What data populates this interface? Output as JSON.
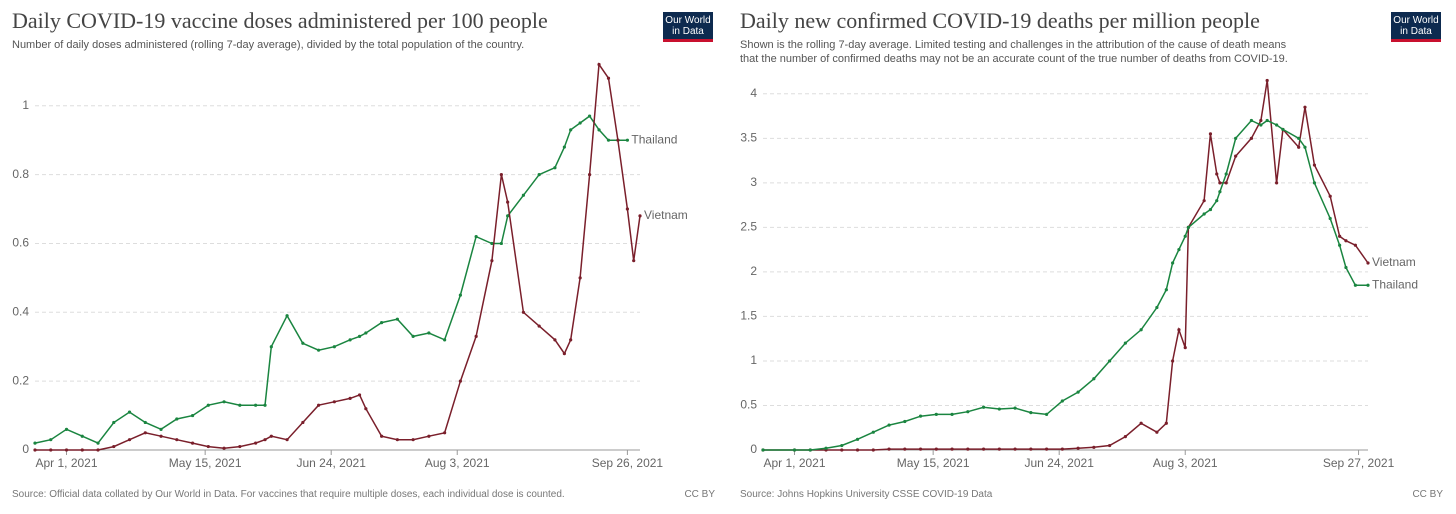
{
  "chart_data": [
    {
      "type": "line",
      "title": "Daily COVID-19 vaccine doses administered per 100 people",
      "subtitle": [
        "Number of daily doses administered (rolling 7-day average), divided by the total population of the country."
      ],
      "logo": "Our World in Data",
      "source": "Source: Official data collated by Our World in Data. For vaccines that require multiple doses, each individual dose is counted.",
      "license": "CC BY",
      "x": [
        "2021-03-22",
        "2021-03-27",
        "2021-04-01",
        "2021-04-06",
        "2021-04-11",
        "2021-04-16",
        "2021-04-21",
        "2021-04-26",
        "2021-05-01",
        "2021-05-06",
        "2021-05-11",
        "2021-05-16",
        "2021-05-21",
        "2021-05-26",
        "2021-05-31",
        "2021-06-03",
        "2021-06-05",
        "2021-06-10",
        "2021-06-15",
        "2021-06-20",
        "2021-06-25",
        "2021-06-30",
        "2021-07-03",
        "2021-07-05",
        "2021-07-10",
        "2021-07-15",
        "2021-07-20",
        "2021-07-25",
        "2021-07-30",
        "2021-08-04",
        "2021-08-09",
        "2021-08-14",
        "2021-08-17",
        "2021-08-19",
        "2021-08-24",
        "2021-08-29",
        "2021-09-03",
        "2021-09-06",
        "2021-09-08",
        "2021-09-11",
        "2021-09-14",
        "2021-09-17",
        "2021-09-20",
        "2021-09-23",
        "2021-09-26",
        "2021-09-28",
        "2021-09-30"
      ],
      "series": [
        {
          "name": "Thailand",
          "color": "#1a8540",
          "values": [
            0.02,
            0.03,
            0.06,
            0.04,
            0.02,
            0.08,
            0.11,
            0.08,
            0.06,
            0.09,
            0.1,
            0.13,
            0.14,
            0.13,
            0.13,
            0.13,
            0.3,
            0.39,
            0.31,
            0.29,
            0.3,
            0.32,
            0.33,
            0.34,
            0.37,
            0.38,
            0.33,
            0.34,
            0.32,
            0.45,
            0.62,
            0.6,
            0.6,
            0.68,
            0.74,
            0.8,
            0.82,
            0.88,
            0.93,
            0.95,
            0.97,
            0.93,
            0.9,
            0.9,
            0.9,
            null,
            null
          ]
        },
        {
          "name": "Vietnam",
          "color": "#7a1f2b",
          "values": [
            0,
            0,
            0,
            0,
            0,
            0.01,
            0.03,
            0.05,
            0.04,
            0.03,
            0.02,
            0.01,
            0.005,
            0.01,
            0.02,
            0.03,
            0.04,
            0.03,
            0.08,
            0.13,
            0.14,
            0.15,
            0.16,
            0.12,
            0.04,
            0.03,
            0.03,
            0.04,
            0.05,
            0.2,
            0.33,
            0.55,
            0.8,
            0.72,
            0.4,
            0.36,
            0.32,
            0.28,
            0.32,
            0.5,
            0.8,
            1.12,
            1.08,
            0.9,
            0.7,
            0.55,
            0.68
          ]
        }
      ],
      "xlim": [
        "2021-03-22",
        "2021-09-30"
      ],
      "xticks": [
        {
          "value": "2021-04-01",
          "label": "Apr 1, 2021"
        },
        {
          "value": "2021-05-15",
          "label": "May 15, 2021"
        },
        {
          "value": "2021-06-24",
          "label": "Jun 24, 2021"
        },
        {
          "value": "2021-08-03",
          "label": "Aug 3, 2021"
        },
        {
          "value": "2021-09-26",
          "label": "Sep 26, 2021"
        }
      ],
      "ylim": [
        0,
        1.13
      ],
      "yticks": [
        0,
        0.2,
        0.4,
        0.6,
        0.8,
        1
      ],
      "grid": true
    },
    {
      "type": "line",
      "title": "Daily new confirmed COVID-19 deaths per million people",
      "subtitle": [
        "Shown is the rolling 7-day average. Limited testing and challenges in the attribution of the cause of death means",
        "that the number of confirmed deaths may not be an accurate count of the true number of deaths from COVID-19."
      ],
      "logo": "Our World in Data",
      "source": "Source: Johns Hopkins University CSSE COVID-19 Data",
      "license": "CC BY",
      "x": [
        "2021-03-22",
        "2021-04-01",
        "2021-04-06",
        "2021-04-11",
        "2021-04-16",
        "2021-04-21",
        "2021-04-26",
        "2021-05-01",
        "2021-05-06",
        "2021-05-11",
        "2021-05-16",
        "2021-05-21",
        "2021-05-26",
        "2021-05-31",
        "2021-06-05",
        "2021-06-10",
        "2021-06-15",
        "2021-06-20",
        "2021-06-25",
        "2021-06-30",
        "2021-07-05",
        "2021-07-10",
        "2021-07-15",
        "2021-07-20",
        "2021-07-25",
        "2021-07-28",
        "2021-07-30",
        "2021-08-01",
        "2021-08-03",
        "2021-08-04",
        "2021-08-09",
        "2021-08-11",
        "2021-08-13",
        "2021-08-14",
        "2021-08-16",
        "2021-08-19",
        "2021-08-24",
        "2021-08-27",
        "2021-08-29",
        "2021-09-01",
        "2021-09-03",
        "2021-09-08",
        "2021-09-10",
        "2021-09-13",
        "2021-09-18",
        "2021-09-21",
        "2021-09-23",
        "2021-09-26",
        "2021-09-30"
      ],
      "series": [
        {
          "name": "Vietnam",
          "color": "#7a1f2b",
          "values": [
            0,
            0,
            0,
            0,
            0,
            0,
            0,
            0.01,
            0.01,
            0.01,
            0.01,
            0.01,
            0.01,
            0.01,
            0.01,
            0.01,
            0.01,
            0.01,
            0.01,
            0.02,
            0.03,
            0.05,
            0.15,
            0.3,
            0.2,
            0.3,
            1.0,
            1.35,
            1.15,
            2.5,
            2.8,
            3.55,
            3.1,
            3.0,
            3.0,
            3.3,
            3.5,
            3.7,
            4.15,
            3.0,
            3.6,
            3.4,
            3.85,
            3.2,
            2.85,
            2.4,
            2.35,
            2.3,
            2.1
          ]
        },
        {
          "name": "Thailand",
          "color": "#1a8540",
          "values": [
            0,
            0,
            0,
            0.02,
            0.05,
            0.12,
            0.2,
            0.28,
            0.32,
            0.38,
            0.4,
            0.4,
            0.43,
            0.48,
            0.46,
            0.47,
            0.42,
            0.4,
            0.55,
            0.65,
            0.8,
            1.0,
            1.2,
            1.35,
            1.6,
            1.8,
            2.1,
            2.25,
            2.4,
            2.5,
            2.65,
            2.7,
            2.8,
            2.9,
            3.1,
            3.5,
            3.7,
            3.65,
            3.7,
            3.65,
            3.6,
            3.5,
            3.4,
            3.0,
            2.6,
            2.3,
            2.05,
            1.85,
            1.85
          ]
        }
      ],
      "xlim": [
        "2021-03-22",
        "2021-09-30"
      ],
      "xticks": [
        {
          "value": "2021-04-01",
          "label": "Apr 1, 2021"
        },
        {
          "value": "2021-05-15",
          "label": "May 15, 2021"
        },
        {
          "value": "2021-06-24",
          "label": "Jun 24, 2021"
        },
        {
          "value": "2021-08-03",
          "label": "Aug 3, 2021"
        },
        {
          "value": "2021-09-27",
          "label": "Sep 27, 2021"
        }
      ],
      "ylim": [
        0,
        4.2
      ],
      "yticks": [
        0,
        0.5,
        1,
        1.5,
        2,
        2.5,
        3,
        3.5,
        4
      ],
      "grid": true
    }
  ]
}
